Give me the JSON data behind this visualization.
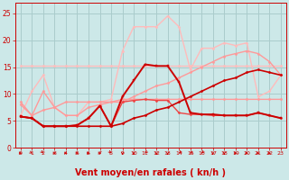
{
  "bg_color": "#cce8e8",
  "grid_color": "#aacccc",
  "xlabel": "Vent moyen/en rafales ( kn/h )",
  "xlabel_color": "#cc0000",
  "xlabel_fontsize": 7,
  "tick_color": "#cc0000",
  "ylim": [
    0,
    27
  ],
  "xlim": [
    -0.5,
    23.5
  ],
  "yticks": [
    0,
    5,
    10,
    15,
    20,
    25
  ],
  "xticks": [
    0,
    1,
    2,
    3,
    4,
    5,
    6,
    7,
    8,
    9,
    10,
    11,
    12,
    13,
    14,
    15,
    16,
    17,
    18,
    19,
    20,
    21,
    22,
    23
  ],
  "lines": [
    {
      "x": [
        0,
        1,
        2,
        3,
        4,
        5,
        6,
        7,
        8,
        9,
        10,
        11,
        12,
        13,
        14,
        15,
        16,
        17,
        18,
        19,
        20,
        21,
        22,
        23
      ],
      "y": [
        15.2,
        15.2,
        15.2,
        15.2,
        15.2,
        15.2,
        15.2,
        15.2,
        15.2,
        15.2,
        15.2,
        15.2,
        15.2,
        15.2,
        15.2,
        15.2,
        15.2,
        15.2,
        15.2,
        15.2,
        15.2,
        15.2,
        15.2,
        15.2
      ],
      "color": "#ffbbbb",
      "lw": 1.0,
      "marker": "D",
      "ms": 1.5
    },
    {
      "x": [
        0,
        1,
        2,
        3,
        4,
        5,
        6,
        7,
        8,
        9,
        10,
        11,
        12,
        13,
        14,
        15,
        16,
        17,
        18,
        19,
        20,
        21,
        22,
        23
      ],
      "y": [
        6.0,
        10.5,
        13.5,
        7.5,
        6.0,
        6.0,
        8.5,
        8.5,
        9.0,
        18.0,
        22.5,
        22.5,
        22.5,
        24.5,
        22.5,
        14.5,
        18.5,
        18.5,
        19.5,
        19.0,
        19.5,
        9.5,
        10.5,
        13.5
      ],
      "color": "#ffbbbb",
      "lw": 1.0,
      "marker": "D",
      "ms": 1.5
    },
    {
      "x": [
        0,
        1,
        2,
        3,
        4,
        5,
        6,
        7,
        8,
        9,
        10,
        11,
        12,
        13,
        14,
        15,
        16,
        17,
        18,
        19,
        20,
        21,
        22,
        23
      ],
      "y": [
        8.5,
        6.0,
        7.0,
        7.5,
        8.5,
        8.5,
        8.5,
        8.5,
        8.5,
        8.5,
        9.5,
        10.5,
        11.5,
        12.0,
        13.0,
        14.0,
        15.0,
        16.0,
        17.0,
        17.5,
        18.0,
        17.5,
        16.0,
        13.5
      ],
      "color": "#ff9999",
      "lw": 1.0,
      "marker": "D",
      "ms": 1.5
    },
    {
      "x": [
        0,
        1,
        2,
        3,
        4,
        5,
        6,
        7,
        8,
        9,
        10,
        11,
        12,
        13,
        14,
        15,
        16,
        17,
        18,
        19,
        20,
        21,
        22,
        23
      ],
      "y": [
        8.0,
        6.0,
        10.5,
        7.5,
        6.0,
        6.0,
        7.5,
        8.0,
        8.5,
        9.0,
        9.0,
        9.0,
        9.0,
        9.0,
        9.0,
        9.0,
        9.0,
        9.0,
        9.0,
        9.0,
        9.0,
        9.0,
        9.0,
        9.0
      ],
      "color": "#ff9999",
      "lw": 1.0,
      "marker": "D",
      "ms": 1.5
    },
    {
      "x": [
        0,
        1,
        2,
        3,
        4,
        5,
        6,
        7,
        8,
        9,
        10,
        11,
        12,
        13,
        14,
        15,
        16,
        17,
        18,
        19,
        20,
        21,
        22,
        23
      ],
      "y": [
        5.8,
        5.5,
        4.0,
        4.0,
        4.0,
        4.2,
        5.5,
        7.8,
        4.0,
        8.5,
        8.8,
        9.0,
        8.8,
        8.8,
        6.5,
        6.2,
        6.2,
        6.0,
        6.0,
        6.0,
        6.0,
        6.5,
        6.0,
        5.5
      ],
      "color": "#ee4444",
      "lw": 1.0,
      "marker": "D",
      "ms": 1.5
    },
    {
      "x": [
        0,
        1,
        2,
        3,
        4,
        5,
        6,
        7,
        8,
        9,
        10,
        11,
        12,
        13,
        14,
        15,
        16,
        17,
        18,
        19,
        20,
        21,
        22,
        23
      ],
      "y": [
        5.8,
        5.5,
        4.0,
        4.0,
        4.0,
        4.0,
        4.0,
        4.0,
        4.0,
        4.5,
        5.5,
        6.0,
        7.0,
        7.5,
        8.5,
        9.5,
        10.5,
        11.5,
        12.5,
        13.0,
        14.0,
        14.5,
        14.0,
        13.5
      ],
      "color": "#cc0000",
      "lw": 1.2,
      "marker": "D",
      "ms": 1.5
    },
    {
      "x": [
        0,
        1,
        2,
        3,
        4,
        5,
        6,
        7,
        8,
        9,
        10,
        11,
        12,
        13,
        14,
        15,
        16,
        17,
        18,
        19,
        20,
        21,
        22,
        23
      ],
      "y": [
        5.8,
        5.5,
        4.0,
        4.0,
        4.0,
        4.2,
        5.5,
        7.8,
        4.0,
        9.5,
        12.5,
        15.5,
        15.2,
        15.2,
        12.2,
        6.5,
        6.2,
        6.2,
        6.0,
        6.0,
        6.0,
        6.5,
        6.0,
        5.5
      ],
      "color": "#cc0000",
      "lw": 1.4,
      "marker": "s",
      "ms": 2.0
    }
  ],
  "arrow_color": "#cc0000"
}
